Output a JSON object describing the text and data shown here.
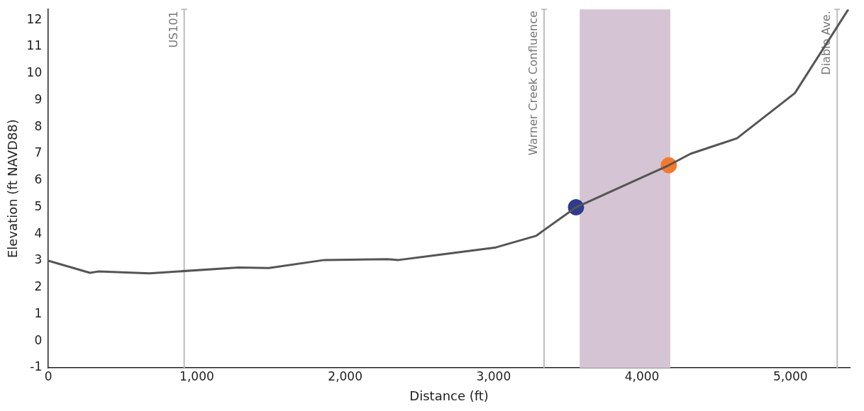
{
  "chart_data": {
    "type": "line",
    "xlabel": "Distance (ft)",
    "ylabel": "Elevation (ft NAVD88)",
    "series": [
      {
        "type": "line",
        "color": "#555555",
        "marker": "none",
        "x": [
          0,
          280,
          335,
          680,
          1280,
          1485,
          1860,
          2285,
          2360,
          2625,
          3015,
          3285,
          3555,
          4180,
          4327,
          4640,
          5030,
          5390
        ],
        "values": [
          3.0,
          2.55,
          2.6,
          2.53,
          2.75,
          2.73,
          3.03,
          3.06,
          3.03,
          3.22,
          3.5,
          3.93,
          5.0,
          6.57,
          7.0,
          7.58,
          9.27,
          12.4
        ]
      },
      {
        "type": "scatter",
        "color": "#2e3b8f",
        "marker": "circle",
        "x": [
          3555
        ],
        "values": [
          5.0
        ]
      },
      {
        "type": "scatter",
        "color": "#f47a2a",
        "marker": "circle",
        "x": [
          4180
        ],
        "values": [
          6.57
        ]
      }
    ],
    "xlim": [
      0,
      5400
    ],
    "xticks": [
      0,
      {
        "value": 1000,
        "label": "1,000"
      },
      {
        "value": 2000,
        "label": "2,000"
      },
      {
        "value": 3000,
        "label": "3,000"
      },
      {
        "value": 4000,
        "label": "4,000"
      },
      {
        "value": 5000,
        "label": "5,000"
      }
    ],
    "ylim": [
      -1,
      12.4
    ],
    "yticks": [
      -1,
      0,
      1,
      2,
      3,
      4,
      5,
      6,
      7,
      8,
      9,
      10,
      11,
      12
    ],
    "ref_lines": [
      {
        "axis": "x",
        "value": 915,
        "label": "US101",
        "color": "#bdbdbd"
      },
      {
        "axis": "x",
        "value": 3340,
        "label": "Warner Creek Confluence",
        "color": "#bdbdbd"
      },
      {
        "axis": "x",
        "value": 5315,
        "label": "Diablo Ave.",
        "color": "#bdbdbd"
      }
    ],
    "bands": [
      {
        "axis": "x",
        "from": 3580,
        "to": 4190,
        "color": "#d5c4d3"
      }
    ],
    "grid": false,
    "legend": false
  }
}
